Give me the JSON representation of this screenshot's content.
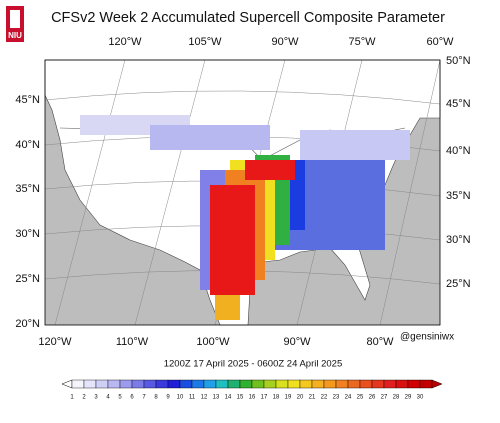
{
  "header": {
    "title": "CFSv2 Week 2 Accumulated Supercell Composite Parameter",
    "logo": "NIU"
  },
  "top_labels": [
    "120°W",
    "105°W",
    "90°W",
    "75°W",
    "60°W"
  ],
  "left_labels": [
    "45°N",
    "40°N",
    "35°N",
    "30°N",
    "25°N",
    "20°N"
  ],
  "right_labels": [
    "50°N",
    "45°N",
    "40°N",
    "35°N",
    "30°N",
    "25°N"
  ],
  "bottom_labels": [
    "120°W",
    "110°W",
    "100°W",
    "90°W",
    "80°W"
  ],
  "credit": "@gensiniwx",
  "valid_period": "1200Z 17  April  2025  - 0600Z 24  April  2025",
  "colorbar": {
    "labels": [
      1,
      2,
      3,
      4,
      5,
      6,
      7,
      8,
      9,
      10,
      11,
      12,
      13,
      14,
      15,
      16,
      17,
      18,
      19,
      20,
      21,
      22,
      23,
      24,
      25,
      26,
      27,
      28,
      29,
      30
    ]
  }
}
